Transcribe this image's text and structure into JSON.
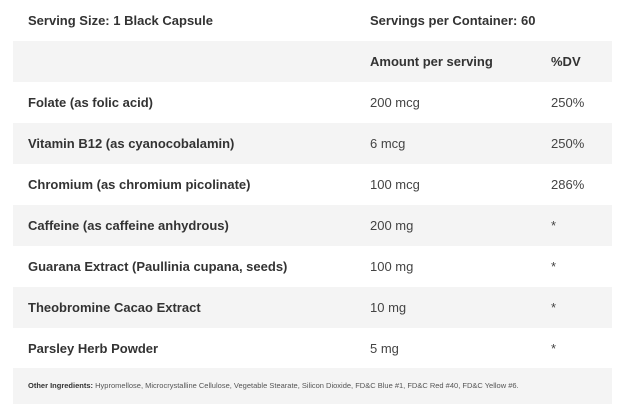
{
  "header": {
    "serving_size": "Serving Size: 1 Black Capsule",
    "servings_per_container": "Servings per Container: 60"
  },
  "columns": {
    "amount": "Amount per serving",
    "dv": "%DV"
  },
  "rows": [
    {
      "name": "Folate (as folic acid)",
      "amount": "200 mcg",
      "dv": "250%"
    },
    {
      "name": "Vitamin B12 (as cyanocobalamin)",
      "amount": "6 mcg",
      "dv": "250%"
    },
    {
      "name": "Chromium (as chromium picolinate)",
      "amount": "100 mcg",
      "dv": "286%"
    },
    {
      "name": "Caffeine (as caffeine anhydrous)",
      "amount": "200 mg",
      "dv": "*"
    },
    {
      "name": "Guarana Extract (Paullinia cupana, seeds)",
      "amount": "100 mg",
      "dv": "*"
    },
    {
      "name": "Theobromine Cacao Extract",
      "amount": "10 mg",
      "dv": "*"
    },
    {
      "name": "Parsley Herb Powder",
      "amount": "5 mg",
      "dv": "*"
    }
  ],
  "footer": {
    "label": "Other Ingredients:",
    "text": "Hypromellose, Microcrystalline Cellulose, Vegetable Stearate, Silicon Dioxide, FD&C Blue #1, FD&C Red #40, FD&C Yellow #6."
  }
}
